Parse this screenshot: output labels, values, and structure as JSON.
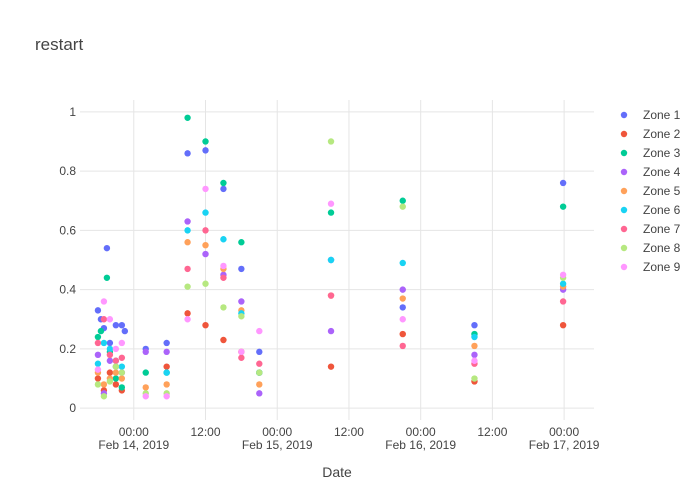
{
  "chart_data": {
    "type": "scatter",
    "title": "restart",
    "xlabel": "Date",
    "ylabel": "",
    "x_range": [
      "2019-02-13 15:00",
      "2019-02-17 05:00"
    ],
    "ylim": [
      -0.04,
      1.04
    ],
    "grid": true,
    "legend_position": "right",
    "x_ticks": [
      {
        "t": "2019-02-14 00:00",
        "label": "00:00",
        "sublabel": "Feb 14, 2019"
      },
      {
        "t": "2019-02-14 12:00",
        "label": "12:00",
        "sublabel": ""
      },
      {
        "t": "2019-02-15 00:00",
        "label": "00:00",
        "sublabel": "Feb 15, 2019"
      },
      {
        "t": "2019-02-15 12:00",
        "label": "12:00",
        "sublabel": ""
      },
      {
        "t": "2019-02-16 00:00",
        "label": "00:00",
        "sublabel": "Feb 16, 2019"
      },
      {
        "t": "2019-02-16 12:00",
        "label": "12:00",
        "sublabel": ""
      },
      {
        "t": "2019-02-17 00:00",
        "label": "00:00",
        "sublabel": "Feb 17, 2019"
      }
    ],
    "y_ticks": [
      0,
      0.2,
      0.4,
      0.6,
      0.8,
      1
    ],
    "series": [
      {
        "name": "Zone 1",
        "color": "#636efa",
        "points": [
          [
            "2019-02-13 18:00",
            0.33
          ],
          [
            "2019-02-13 18:30",
            0.3
          ],
          [
            "2019-02-13 19:00",
            0.27
          ],
          [
            "2019-02-13 19:30",
            0.54
          ],
          [
            "2019-02-13 20:00",
            0.22
          ],
          [
            "2019-02-13 21:00",
            0.28
          ],
          [
            "2019-02-13 22:00",
            0.28
          ],
          [
            "2019-02-13 22:30",
            0.26
          ],
          [
            "2019-02-14 02:00",
            0.2
          ],
          [
            "2019-02-14 05:30",
            0.22
          ],
          [
            "2019-02-14 09:00",
            0.86
          ],
          [
            "2019-02-14 12:00",
            0.87
          ],
          [
            "2019-02-14 15:00",
            0.74
          ],
          [
            "2019-02-14 18:00",
            0.47
          ],
          [
            "2019-02-14 21:00",
            0.19
          ],
          [
            "2019-02-15 09:00",
            0.5
          ],
          [
            "2019-02-15 21:00",
            0.34
          ],
          [
            "2019-02-16 09:00",
            0.28
          ],
          [
            "2019-02-16 23:50",
            0.76
          ]
        ]
      },
      {
        "name": "Zone 2",
        "color": "#ef553b",
        "points": [
          [
            "2019-02-13 18:00",
            0.1
          ],
          [
            "2019-02-13 19:00",
            0.06
          ],
          [
            "2019-02-13 20:00",
            0.12
          ],
          [
            "2019-02-13 21:00",
            0.08
          ],
          [
            "2019-02-13 22:00",
            0.06
          ],
          [
            "2019-02-14 05:30",
            0.14
          ],
          [
            "2019-02-14 09:00",
            0.32
          ],
          [
            "2019-02-14 12:00",
            0.28
          ],
          [
            "2019-02-14 15:00",
            0.23
          ],
          [
            "2019-02-14 18:00",
            0.19
          ],
          [
            "2019-02-14 21:00",
            0.12
          ],
          [
            "2019-02-15 09:00",
            0.14
          ],
          [
            "2019-02-15 21:00",
            0.25
          ],
          [
            "2019-02-16 09:00",
            0.09
          ],
          [
            "2019-02-16 23:50",
            0.28
          ]
        ]
      },
      {
        "name": "Zone 3",
        "color": "#00cc96",
        "points": [
          [
            "2019-02-13 18:00",
            0.24
          ],
          [
            "2019-02-13 18:30",
            0.26
          ],
          [
            "2019-02-13 19:30",
            0.44
          ],
          [
            "2019-02-13 20:00",
            0.19
          ],
          [
            "2019-02-13 21:00",
            0.1
          ],
          [
            "2019-02-13 22:00",
            0.07
          ],
          [
            "2019-02-14 02:00",
            0.12
          ],
          [
            "2019-02-14 05:30",
            0.12
          ],
          [
            "2019-02-14 09:00",
            0.98
          ],
          [
            "2019-02-14 12:00",
            0.9
          ],
          [
            "2019-02-14 15:00",
            0.76
          ],
          [
            "2019-02-14 18:00",
            0.56
          ],
          [
            "2019-02-14 21:00",
            0.12
          ],
          [
            "2019-02-15 09:00",
            0.66
          ],
          [
            "2019-02-15 21:00",
            0.7
          ],
          [
            "2019-02-16 09:00",
            0.25
          ],
          [
            "2019-02-16 23:50",
            0.68
          ]
        ]
      },
      {
        "name": "Zone 4",
        "color": "#ab63fa",
        "points": [
          [
            "2019-02-13 18:00",
            0.18
          ],
          [
            "2019-02-13 19:00",
            0.05
          ],
          [
            "2019-02-13 20:00",
            0.16
          ],
          [
            "2019-02-13 21:00",
            0.14
          ],
          [
            "2019-02-13 22:00",
            0.12
          ],
          [
            "2019-02-14 02:00",
            0.19
          ],
          [
            "2019-02-14 05:30",
            0.19
          ],
          [
            "2019-02-14 09:00",
            0.63
          ],
          [
            "2019-02-14 12:00",
            0.52
          ],
          [
            "2019-02-14 15:00",
            0.45
          ],
          [
            "2019-02-14 18:00",
            0.36
          ],
          [
            "2019-02-14 21:00",
            0.05
          ],
          [
            "2019-02-15 09:00",
            0.26
          ],
          [
            "2019-02-15 21:00",
            0.4
          ],
          [
            "2019-02-16 09:00",
            0.18
          ],
          [
            "2019-02-16 23:50",
            0.4
          ]
        ]
      },
      {
        "name": "Zone 5",
        "color": "#ffa15a",
        "points": [
          [
            "2019-02-13 18:00",
            0.12
          ],
          [
            "2019-02-13 19:00",
            0.08
          ],
          [
            "2019-02-13 20:00",
            0.1
          ],
          [
            "2019-02-13 21:00",
            0.12
          ],
          [
            "2019-02-13 22:00",
            0.1
          ],
          [
            "2019-02-14 02:00",
            0.07
          ],
          [
            "2019-02-14 05:30",
            0.08
          ],
          [
            "2019-02-14 09:00",
            0.56
          ],
          [
            "2019-02-14 12:00",
            0.55
          ],
          [
            "2019-02-14 15:00",
            0.47
          ],
          [
            "2019-02-14 18:00",
            0.33
          ],
          [
            "2019-02-14 21:00",
            0.08
          ],
          [
            "2019-02-15 09:00",
            0.38
          ],
          [
            "2019-02-15 21:00",
            0.37
          ],
          [
            "2019-02-16 09:00",
            0.21
          ],
          [
            "2019-02-16 23:50",
            0.41
          ]
        ]
      },
      {
        "name": "Zone 6",
        "color": "#19d3f3",
        "points": [
          [
            "2019-02-13 18:00",
            0.15
          ],
          [
            "2019-02-13 19:00",
            0.22
          ],
          [
            "2019-02-13 20:00",
            0.2
          ],
          [
            "2019-02-13 21:00",
            0.16
          ],
          [
            "2019-02-13 22:00",
            0.14
          ],
          [
            "2019-02-14 05:30",
            0.12
          ],
          [
            "2019-02-14 09:00",
            0.6
          ],
          [
            "2019-02-14 12:00",
            0.66
          ],
          [
            "2019-02-14 15:00",
            0.57
          ],
          [
            "2019-02-14 18:00",
            0.32
          ],
          [
            "2019-02-14 21:00",
            0.12
          ],
          [
            "2019-02-15 09:00",
            0.5
          ],
          [
            "2019-02-15 21:00",
            0.49
          ],
          [
            "2019-02-16 09:00",
            0.24
          ],
          [
            "2019-02-16 23:50",
            0.42
          ]
        ]
      },
      {
        "name": "Zone 7",
        "color": "#ff6692",
        "points": [
          [
            "2019-02-13 18:00",
            0.22
          ],
          [
            "2019-02-13 19:00",
            0.3
          ],
          [
            "2019-02-13 20:00",
            0.18
          ],
          [
            "2019-02-13 21:00",
            0.16
          ],
          [
            "2019-02-13 22:00",
            0.17
          ],
          [
            "2019-02-14 09:00",
            0.47
          ],
          [
            "2019-02-14 12:00",
            0.6
          ],
          [
            "2019-02-14 15:00",
            0.44
          ],
          [
            "2019-02-14 18:00",
            0.17
          ],
          [
            "2019-02-14 21:00",
            0.15
          ],
          [
            "2019-02-15 09:00",
            0.38
          ],
          [
            "2019-02-15 21:00",
            0.21
          ],
          [
            "2019-02-16 09:00",
            0.15
          ],
          [
            "2019-02-16 23:50",
            0.36
          ]
        ]
      },
      {
        "name": "Zone 8",
        "color": "#b6e880",
        "points": [
          [
            "2019-02-13 18:00",
            0.08
          ],
          [
            "2019-02-13 19:00",
            0.04
          ],
          [
            "2019-02-13 20:00",
            0.09
          ],
          [
            "2019-02-13 21:00",
            0.14
          ],
          [
            "2019-02-13 22:00",
            0.12
          ],
          [
            "2019-02-14 02:00",
            0.05
          ],
          [
            "2019-02-14 05:30",
            0.05
          ],
          [
            "2019-02-14 09:00",
            0.41
          ],
          [
            "2019-02-14 12:00",
            0.42
          ],
          [
            "2019-02-14 15:00",
            0.34
          ],
          [
            "2019-02-14 18:00",
            0.31
          ],
          [
            "2019-02-14 21:00",
            0.12
          ],
          [
            "2019-02-15 09:00",
            0.9
          ],
          [
            "2019-02-15 21:00",
            0.68
          ],
          [
            "2019-02-16 09:00",
            0.1
          ],
          [
            "2019-02-16 23:50",
            0.44
          ]
        ]
      },
      {
        "name": "Zone 9",
        "color": "#ff97ff",
        "points": [
          [
            "2019-02-13 18:00",
            0.13
          ],
          [
            "2019-02-13 19:00",
            0.36
          ],
          [
            "2019-02-13 20:00",
            0.3
          ],
          [
            "2019-02-13 21:00",
            0.2
          ],
          [
            "2019-02-13 22:00",
            0.22
          ],
          [
            "2019-02-14 02:00",
            0.04
          ],
          [
            "2019-02-14 05:30",
            0.04
          ],
          [
            "2019-02-14 09:00",
            0.3
          ],
          [
            "2019-02-14 12:00",
            0.74
          ],
          [
            "2019-02-14 15:00",
            0.48
          ],
          [
            "2019-02-14 18:00",
            0.19
          ],
          [
            "2019-02-14 21:00",
            0.26
          ],
          [
            "2019-02-15 09:00",
            0.69
          ],
          [
            "2019-02-15 21:00",
            0.3
          ],
          [
            "2019-02-16 09:00",
            0.16
          ],
          [
            "2019-02-16 23:50",
            0.45
          ]
        ]
      }
    ]
  }
}
